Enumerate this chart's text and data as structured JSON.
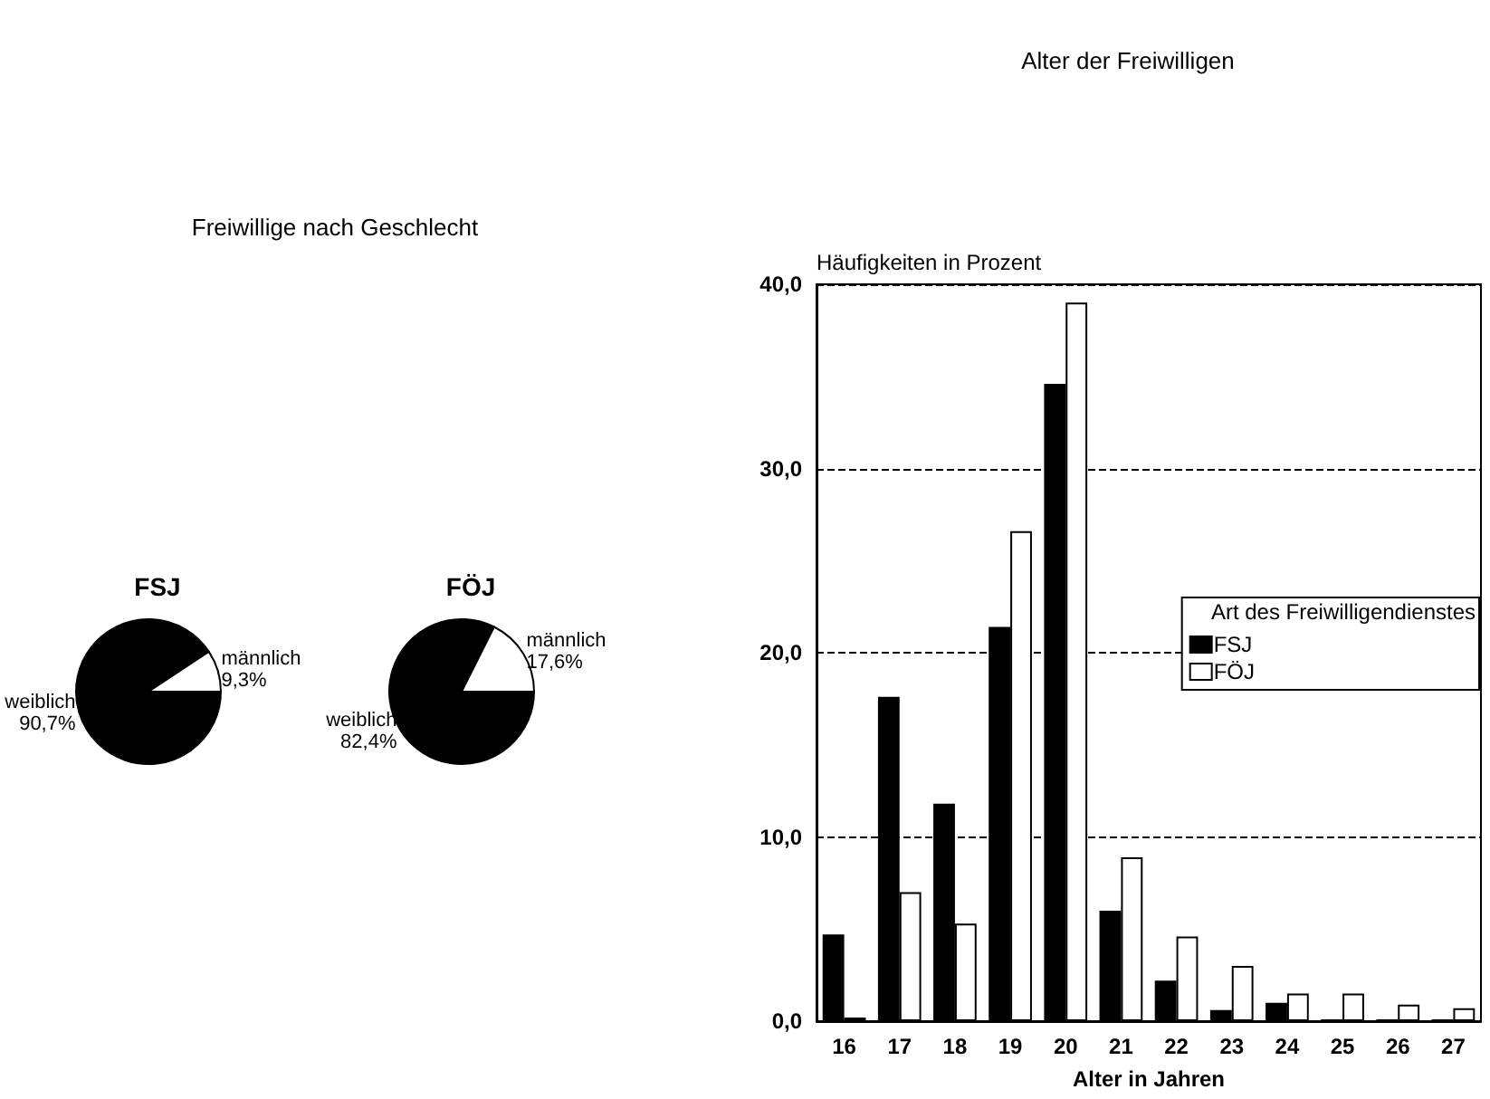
{
  "chart_data": [
    {
      "type": "pie",
      "title": "Freiwillige nach Geschlecht",
      "subtitle": "FSJ",
      "categories": [
        "weiblich",
        "männlich"
      ],
      "values": [
        90.7,
        9.3
      ],
      "colors": [
        "#000000",
        "#ffffff"
      ],
      "value_labels": [
        "90,7%",
        "9,3%"
      ],
      "legend": false
    },
    {
      "type": "pie",
      "title": "FÖJ",
      "categories": [
        "weiblich",
        "männlich"
      ],
      "values": [
        82.4,
        17.6
      ],
      "colors": [
        "#000000",
        "#ffffff"
      ],
      "value_labels": [
        "82,4%",
        "17,6%"
      ],
      "legend": false
    },
    {
      "type": "bar",
      "title": "Alter der Freiwilligen",
      "xlabel": "Alter in Jahren",
      "ylabel": "Häufigkeiten in Prozent",
      "legend_title": "Art des Freiwilligendienstes",
      "legend": "center right",
      "categories": [
        "16",
        "17",
        "18",
        "19",
        "20",
        "21",
        "22",
        "23",
        "24",
        "25",
        "26",
        "27"
      ],
      "series": [
        {
          "name": "FSJ",
          "color": "#000000",
          "values": [
            4.7,
            17.6,
            11.8,
            21.4,
            34.6,
            6.0,
            2.2,
            0.6,
            1.0,
            0.1,
            0.1,
            0.1
          ]
        },
        {
          "name": "FÖJ",
          "color": "#ffffff",
          "values": [
            0.2,
            7.0,
            5.3,
            26.6,
            39.0,
            8.9,
            4.6,
            3.0,
            1.5,
            1.5,
            0.9,
            0.7
          ]
        }
      ],
      "ylim": [
        0,
        40
      ],
      "yticks": [
        {
          "value": 0,
          "label": "0,0"
        },
        {
          "value": 10,
          "label": "10,0"
        },
        {
          "value": 20,
          "label": "20,0"
        },
        {
          "value": 30,
          "label": "30,0"
        },
        {
          "value": 40,
          "label": "40,0"
        }
      ],
      "grid": "y",
      "line_style": "dashed"
    }
  ]
}
